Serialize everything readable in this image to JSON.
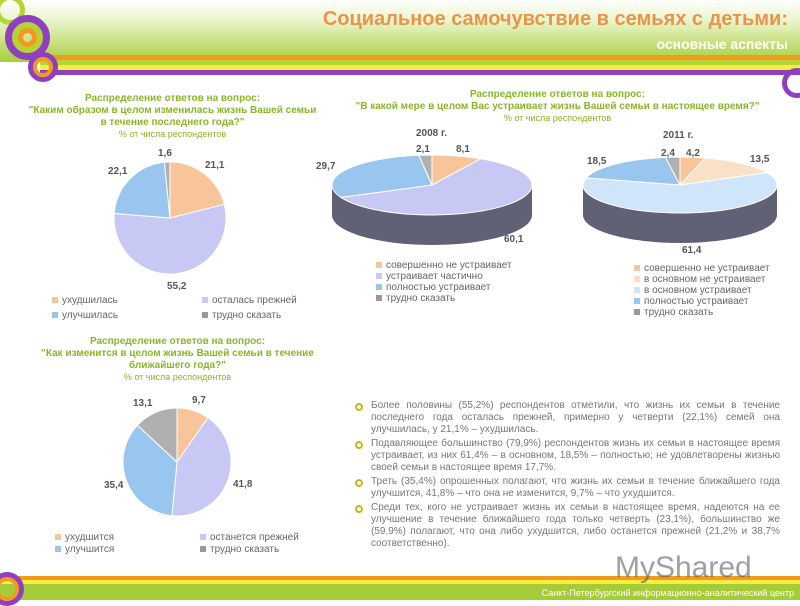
{
  "header": {
    "title": "Социальное самочувствие в семьях с детьми:",
    "subtitle": "основные аспекты"
  },
  "colors": {
    "peach": "#f8c59a",
    "lavender": "#c8c8f4",
    "blue": "#99c6ee",
    "gray": "#b0b0b0",
    "lightpeach": "#fbe0c8",
    "lightblue": "#cfe6fa",
    "accent": "#8ab52a"
  },
  "chart_data": [
    {
      "type": "pie",
      "title": "Распределение ответов на вопрос:",
      "question": "\"Каким образом в целом изменилась жизнь Вашей семьи в течение последнего года?\"",
      "note": "% от числа респондентов",
      "categories": [
        "ухудшилась",
        "осталась прежней",
        "улучшилась",
        "трудно сказать"
      ],
      "values": [
        21.1,
        55.2,
        22.1,
        1.6
      ],
      "labels": [
        "21,1",
        "55,2",
        "22,1",
        "1,6"
      ]
    },
    {
      "type": "pie",
      "title": "Распределение ответов на вопрос:",
      "question": "\"В какой мере в целом Вас устраивает жизнь Вашей семьи в настоящее время?\"",
      "note": "% от числа респондентов",
      "subtitle": "2008 г.",
      "categories": [
        "совершенно не устраивает",
        "устраивает частично",
        "полностью устраивает",
        "трудно сказать"
      ],
      "values": [
        8.1,
        60.1,
        29.7,
        2.1
      ],
      "labels": [
        "8,1",
        "60,1",
        "29,7",
        "2,1"
      ]
    },
    {
      "type": "pie",
      "subtitle": "2011 г.",
      "categories": [
        "совершенно не устраивает",
        "в основном не устраивает",
        "в основном устраивает",
        "полностью устраивает",
        "трудно сказать"
      ],
      "values": [
        4.2,
        13.5,
        61.4,
        18.5,
        2.4
      ],
      "labels": [
        "4,2",
        "13,5",
        "61,4",
        "18,5",
        "2,4"
      ]
    },
    {
      "type": "pie",
      "title": "Распределение ответов на вопрос:",
      "question": "\"Как изменится в целом жизнь Вашей семьи в течение ближайшего года?\"",
      "note": "% от числа респондентов",
      "categories": [
        "ухудшится",
        "останется прежней",
        "улучшится",
        "трудно сказать"
      ],
      "values": [
        9.7,
        41.8,
        35.4,
        13.1
      ],
      "labels": [
        "9,7",
        "41,8",
        "35,4",
        "13,1"
      ]
    }
  ],
  "bullets": [
    "Более половины (55,2%) респондентов отметили, что жизнь их семьи в течение последнего года осталась прежней, примерно у четверти (22,1%) семей она улучшилась, у 21,1% – ухудшилась.",
    "Подавляющее большинство (79,9%) респондентов жизнь их семьи в настоящее время устраивает, из них 61,4% – в основном, 18,5% – полностью; не удовлетворены жизнью своей семьи в настоящее время 17,7%.",
    "Треть (35,4%) опрошенных полагают, что жизнь их семьи в течение ближайшего года улучшится, 41,8% – что она не изменится, 9,7% – что ухудшится.",
    "Среди тех, кого не устраивает жизнь их семьи в настоящее время, надеются на ее улучшение в течение ближайшего года только четверть (23,1%), большинство же (59,9%) полагают, что она либо ухудшится, либо останется прежней (21,2% и 38,7% соответственно)."
  ],
  "footer": "Санкт-Петербургский информационно-аналитический центр",
  "watermark": "MyShared"
}
